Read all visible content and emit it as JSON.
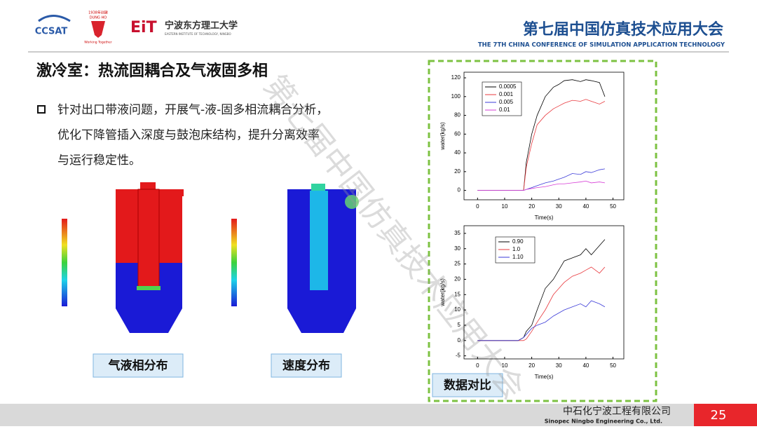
{
  "header": {
    "logo_left": "CCSAT",
    "logo_mid_top": "1938年创建",
    "logo_mid_name": "DUNG HO",
    "logo_mid_slogan": "Working Together",
    "logo_eit": "EiT",
    "logo_eit_cn": "宁波东方理工大学",
    "logo_eit_en": "EASTERN INSTITUTE OF TECHNOLOGY, NINGBO",
    "conference_cn": "第七届中国仿真技术应用大会",
    "conference_en": "THE 7TH CHINA CONFERENCE OF SIMULATION APPLICATION TECHNOLOGY"
  },
  "slide": {
    "title": "激冷室：热流固耦合及气液固多相",
    "bullet_lines": [
      "针对出口带液问题，开展气-液-固多相流耦合分析，",
      "优化下降管插入深度与鼓泡床结构，提升分离效率",
      "与运行稳定性。"
    ],
    "caption_left": "气液相分布",
    "caption_right": "速度分布",
    "caption_charts": "数据对比",
    "watermark": "第七届中国仿真技术应用大会"
  },
  "footer": {
    "company_cn": "中石化宁波工程有限公司",
    "company_en": "Sinopec Ningbo Engineering Co., Ltd.",
    "page": "25"
  },
  "chart_data": [
    {
      "type": "line",
      "x_label": "Time(s)",
      "y_label": "water(kg/s)",
      "x": [
        0,
        5,
        10,
        15,
        17,
        18,
        20,
        22,
        25,
        28,
        30,
        32,
        35,
        38,
        40,
        42,
        45,
        47
      ],
      "xlim": [
        -5,
        54
      ],
      "xticks": [
        0,
        10,
        20,
        30,
        40,
        50
      ],
      "ylim": [
        -10,
        126
      ],
      "yticks": [
        0,
        20,
        40,
        60,
        80,
        100,
        120
      ],
      "legend": "upper left",
      "series": [
        {
          "name": "0.0005",
          "color": "#000000",
          "values": [
            0,
            0,
            0,
            0,
            0,
            30,
            60,
            80,
            100,
            110,
            113,
            117,
            118,
            116,
            118,
            117,
            115,
            100
          ]
        },
        {
          "name": "0.001",
          "color": "#e8383d",
          "values": [
            0,
            0,
            0,
            0,
            0,
            25,
            50,
            70,
            80,
            87,
            90,
            93,
            96,
            95,
            97,
            95,
            92,
            95
          ]
        },
        {
          "name": "0.005",
          "color": "#3b3bd8",
          "values": [
            0,
            0,
            0,
            0,
            0,
            1,
            3,
            5,
            8,
            10,
            12,
            14,
            18,
            17,
            20,
            19,
            22,
            23
          ]
        },
        {
          "name": "0.01",
          "color": "#d63cd6",
          "values": [
            0,
            0,
            0,
            0,
            0,
            1,
            2,
            3,
            4,
            6,
            7,
            7,
            8,
            9,
            10,
            8,
            9,
            8
          ]
        }
      ]
    },
    {
      "type": "line",
      "x_label": "Time(s)",
      "y_label": "water(kg/s)",
      "x": [
        0,
        5,
        10,
        15,
        17,
        18,
        20,
        22,
        25,
        28,
        30,
        32,
        35,
        38,
        40,
        42,
        45,
        47
      ],
      "xlim": [
        -5,
        54
      ],
      "xticks": [
        0,
        10,
        20,
        30,
        40,
        50
      ],
      "ylim": [
        -6,
        37.5
      ],
      "yticks": [
        -5,
        0,
        5,
        10,
        15,
        20,
        25,
        30,
        35
      ],
      "legend": "upper left",
      "series": [
        {
          "name": "0.90",
          "color": "#000000",
          "values": [
            0,
            0,
            0,
            0,
            1,
            3,
            5,
            10,
            17,
            20,
            23,
            26,
            27,
            28,
            30,
            28,
            31,
            33
          ]
        },
        {
          "name": "1.0",
          "color": "#e8383d",
          "values": [
            0,
            0,
            0,
            0,
            0,
            0.5,
            3,
            6,
            10,
            15,
            17,
            19,
            21,
            22,
            23,
            24,
            22,
            24
          ]
        },
        {
          "name": "1.10",
          "color": "#3b3bd8",
          "values": [
            0,
            0,
            0,
            0,
            1,
            2,
            4,
            5,
            6,
            8,
            9,
            10,
            11,
            12,
            11,
            13,
            12,
            11
          ]
        }
      ]
    }
  ]
}
